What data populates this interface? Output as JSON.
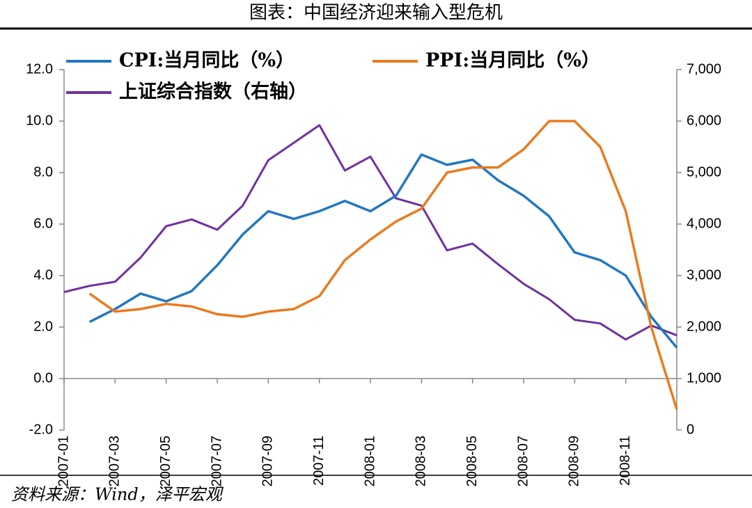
{
  "chart_data": {
    "type": "line",
    "title": "图表：中国经济迎来输入型危机",
    "source": "资料来源：Wind，泽平宏观",
    "categories": [
      "2007-01",
      null,
      "2007-03",
      null,
      "2007-05",
      null,
      "2007-07",
      null,
      "2007-09",
      null,
      "2007-11",
      null,
      "2008-01",
      null,
      "2008-03",
      null,
      "2008-05",
      null,
      "2008-07",
      null,
      "2008-09",
      null,
      "2008-11",
      null,
      null
    ],
    "series": [
      {
        "name": "CPI:当月同比（%）",
        "color": "#2177c1",
        "values": [
          null,
          2.2,
          2.7,
          3.3,
          3.0,
          3.4,
          4.4,
          5.6,
          6.5,
          6.2,
          6.5,
          6.9,
          6.5,
          7.1,
          8.7,
          8.3,
          8.5,
          7.7,
          7.1,
          6.3,
          4.9,
          4.6,
          4.0,
          2.4,
          1.2
        ]
      },
      {
        "name": "PPI:当月同比（%）",
        "color": "#ea7a1f",
        "values": [
          null,
          3.3,
          2.6,
          2.7,
          2.9,
          2.8,
          2.5,
          2.4,
          2.6,
          2.7,
          3.2,
          4.6,
          5.4,
          6.1,
          6.6,
          8.0,
          8.2,
          8.2,
          8.9,
          10.0,
          10.0,
          9.0,
          6.5,
          2.0,
          -1.2
        ]
      },
      {
        "name": "上证综合指数（右轴）",
        "color": "#7030a0",
        "axis": "y2",
        "values": [
          2680,
          2800,
          2880,
          3350,
          3960,
          4090,
          3890,
          4360,
          5240,
          5580,
          5920,
          5040,
          5310,
          4500,
          4360,
          3490,
          3620,
          3220,
          2840,
          2540,
          2140,
          2070,
          1760,
          2030,
          1840
        ]
      }
    ],
    "ylim": [
      -2,
      12
    ],
    "yticks": [
      {
        "value": -2,
        "label": "-2.0"
      },
      {
        "value": 0,
        "label": "0.0"
      },
      {
        "value": 2,
        "label": "2.0"
      },
      {
        "value": 4,
        "label": "4.0"
      },
      {
        "value": 6,
        "label": "6.0"
      },
      {
        "value": 8,
        "label": "8.0"
      },
      {
        "value": 10,
        "label": "10.0"
      },
      {
        "value": 12,
        "label": "12.0"
      }
    ],
    "y2lim": [
      0,
      7000
    ],
    "y2ticks": [
      0,
      {
        "value": 1000,
        "label": "1,000"
      },
      {
        "value": 2000,
        "label": "2,000"
      },
      {
        "value": 3000,
        "label": "3,000"
      },
      {
        "value": 4000,
        "label": "4,000"
      },
      {
        "value": 5000,
        "label": "5,000"
      },
      {
        "value": 6000,
        "label": "6,000"
      },
      {
        "value": 7000,
        "label": "7,000"
      }
    ]
  }
}
